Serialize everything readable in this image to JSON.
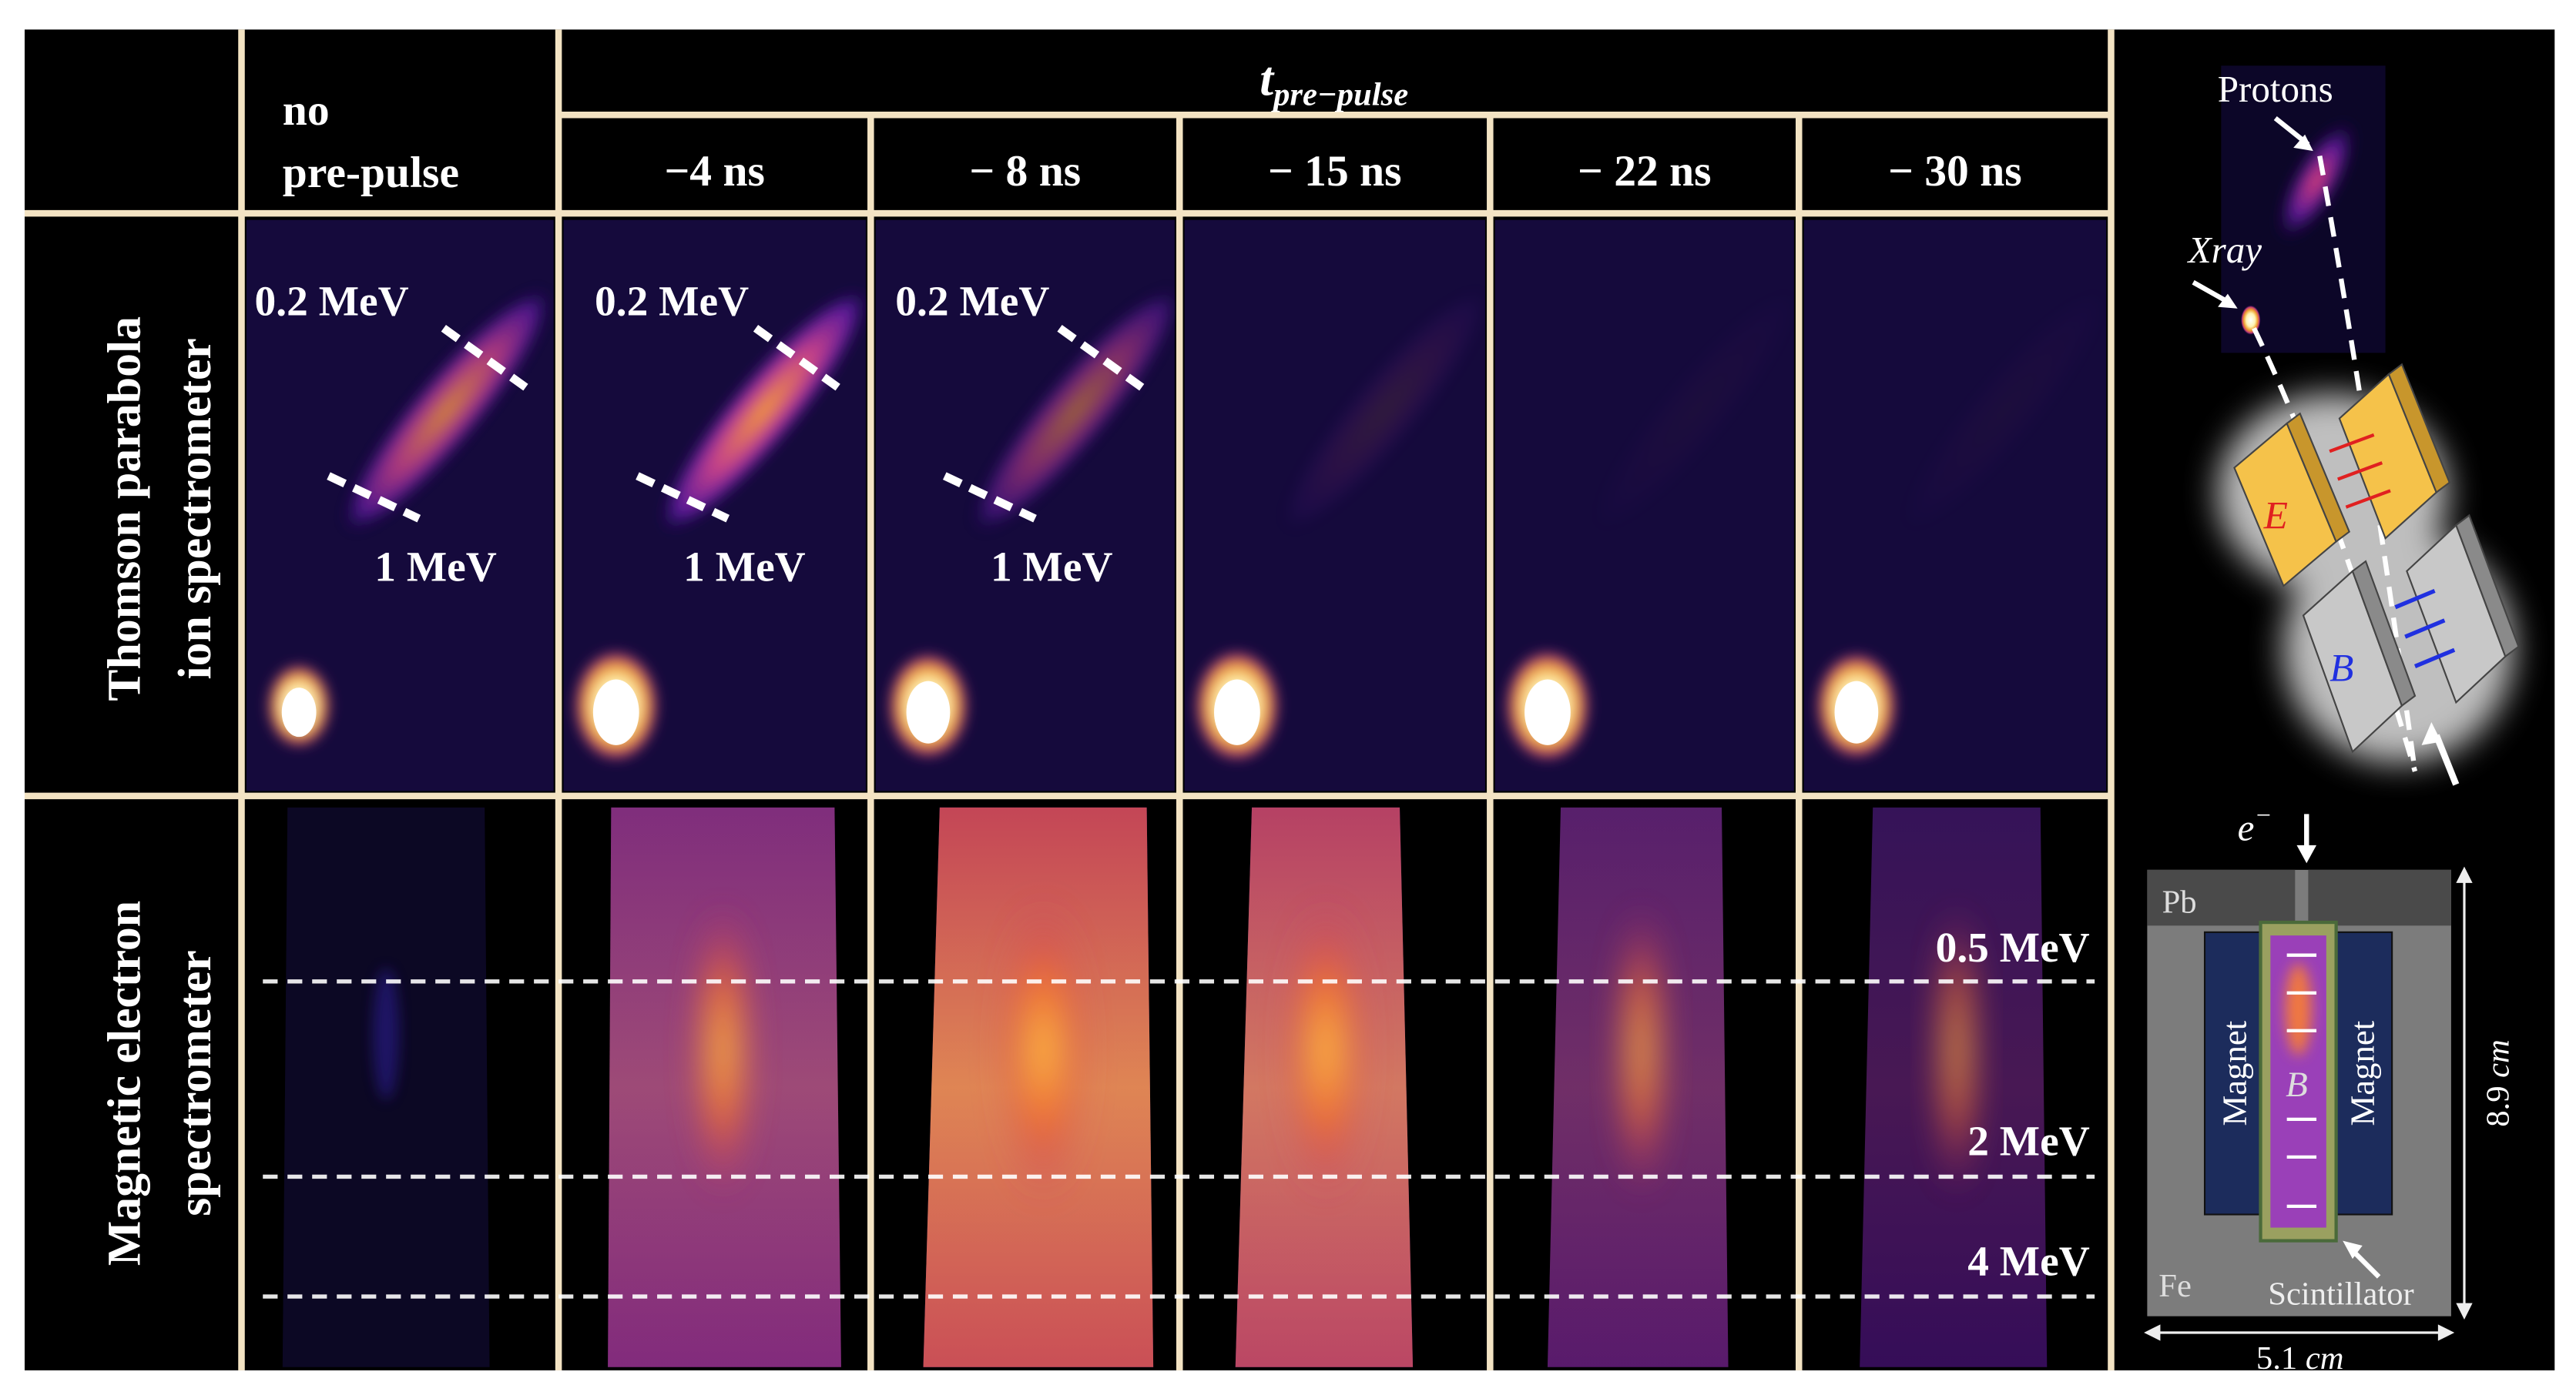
{
  "header": {
    "time_symbol": "t",
    "time_subscript": "pre−pulse",
    "reference": [
      "no",
      "pre-pulse"
    ],
    "delays": [
      "−4 ns",
      "− 8 ns",
      "− 15 ns",
      "− 22 ns",
      "− 30 ns"
    ]
  },
  "rows": [
    {
      "label": [
        "Thomson parabola",
        "ion spectrometer"
      ],
      "energy_labels": [
        "0.2 MeV",
        "1 MeV"
      ]
    },
    {
      "label": [
        "Magnetic electron",
        "spectrometer"
      ],
      "energy_labels": [
        "0.5 MeV",
        "2 MeV",
        "4 MeV"
      ]
    }
  ],
  "schematic": {
    "protons": "Protons",
    "xray": "Xray",
    "electric_field": "E",
    "magnetic_field": "B",
    "electron": "e",
    "electron_charge": "−",
    "lead": "Pb",
    "magnet_left": "Magnet",
    "magnet_right": "Magnet",
    "field_center": "B",
    "iron": "Fe",
    "scintillator": "Scintillator",
    "height": "8.9",
    "width": "5.1",
    "unit": "cm"
  }
}
